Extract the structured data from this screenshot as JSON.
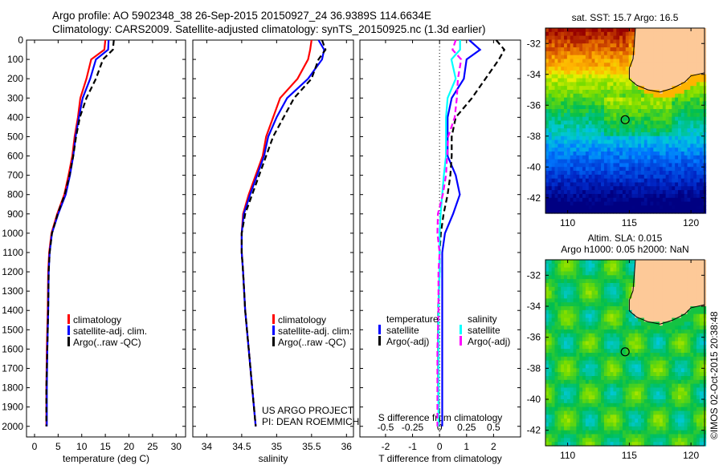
{
  "title": {
    "line1": "Argo profile: AO 5902348_38 26-Sep-2015 20150927_24 36.9389S 114.6634E",
    "line2": "Climatology: CARS2009. Satellite-adjusted climatology: synTS_20150925.nc (1.3d earlier)"
  },
  "credits": {
    "project": "US ARGO PROJECT",
    "pi": "PI: DEAN ROEMMICH"
  },
  "copyright": "©IMOS 02-Oct-2015 20:38:48",
  "chart_data": [
    {
      "id": "temperature",
      "type": "line",
      "xlabel": "temperature (deg C)",
      "ylabel": "",
      "xlim": [
        -1.7,
        32
      ],
      "ylim": [
        2055,
        0
      ],
      "xticks": [
        0,
        5,
        10,
        15,
        20,
        25,
        30
      ],
      "xtick_labels": [
        "0",
        "5",
        "10",
        "15",
        "20",
        "25",
        "30"
      ],
      "yticks": [
        0,
        100,
        200,
        300,
        400,
        500,
        600,
        700,
        800,
        900,
        1000,
        1100,
        1200,
        1300,
        1400,
        1500,
        1600,
        1700,
        1800,
        1900,
        2000
      ],
      "ytick_labels": [
        "0",
        "100",
        "200",
        "300",
        "400",
        "500",
        "600",
        "700",
        "800",
        "900",
        "1000",
        "1100",
        "1200",
        "1300",
        "1400",
        "1500",
        "1600",
        "1700",
        "1800",
        "1900",
        "2000"
      ],
      "depth": [
        0,
        50,
        100,
        200,
        300,
        400,
        500,
        600,
        700,
        800,
        900,
        1000,
        1100,
        1200,
        1400,
        1600,
        1800,
        2000
      ],
      "series": [
        {
          "name": "climatology",
          "color": "#ff0000",
          "dash": false,
          "values": [
            15,
            14.8,
            12,
            11,
            9.7,
            9.2,
            8.5,
            8,
            7.2,
            6.3,
            4.8,
            3.6,
            3.1,
            2.9,
            2.8,
            2.6,
            2.5,
            2.5
          ]
        },
        {
          "name": "satellite-adj. clim.",
          "color": "#0000ff",
          "dash": false,
          "values": [
            15.7,
            15.6,
            13,
            11.8,
            10.2,
            9.4,
            8.7,
            8.2,
            7.5,
            6.6,
            5,
            3.7,
            3.2,
            3,
            2.9,
            2.7,
            2.6,
            2.6
          ]
        },
        {
          "name": "Argo(..raw -QC)",
          "color": "#000000",
          "dash": true,
          "values": [
            16.8,
            16.6,
            14.5,
            13,
            11,
            9.6,
            8.8,
            8.2,
            7.4,
            6.4,
            4.9,
            3.7,
            3.2,
            3,
            2.9,
            2.7,
            2.5,
            2.5
          ]
        }
      ]
    },
    {
      "id": "salinity",
      "type": "line",
      "xlabel": "salinity",
      "ylabel": "",
      "xlim": [
        33.8,
        36.1
      ],
      "ylim": [
        2055,
        0
      ],
      "xticks": [
        34,
        34.5,
        35,
        35.5,
        36
      ],
      "xtick_labels": [
        "34",
        "34.5",
        "35",
        "35.5",
        "36"
      ],
      "depth": [
        0,
        50,
        100,
        200,
        300,
        400,
        500,
        600,
        700,
        800,
        900,
        1000,
        1100,
        1200,
        1400,
        1600,
        1800,
        2000
      ],
      "series": [
        {
          "name": "climatology",
          "color": "#ff0000",
          "dash": false,
          "values": [
            35.5,
            35.48,
            35.45,
            35.3,
            35.05,
            34.95,
            34.85,
            34.8,
            34.7,
            34.6,
            34.52,
            34.5,
            34.5,
            34.52,
            34.55,
            34.6,
            34.65,
            34.7
          ]
        },
        {
          "name": "satellite-adj. clim.",
          "color": "#0000ff",
          "dash": false,
          "values": [
            35.6,
            35.68,
            35.65,
            35.45,
            35.15,
            35.0,
            34.88,
            34.82,
            34.72,
            34.62,
            34.53,
            34.5,
            34.5,
            34.52,
            34.55,
            34.6,
            34.65,
            34.7
          ]
        },
        {
          "name": "Argo(..raw -QC)",
          "color": "#000000",
          "dash": true,
          "values": [
            35.65,
            35.7,
            35.6,
            35.5,
            35.25,
            35.1,
            34.95,
            34.85,
            34.75,
            34.65,
            34.55,
            34.5,
            34.5,
            34.52,
            34.55,
            34.6,
            34.65,
            34.7
          ]
        }
      ]
    },
    {
      "id": "difference",
      "type": "line",
      "xlabel": "T difference from climatology",
      "x2label": "S difference from climatology",
      "xlim": [
        -2.95,
        3.0
      ],
      "x2lim": [
        -0.7375,
        0.75
      ],
      "ylim": [
        2055,
        0
      ],
      "xticks": [
        -2,
        -1,
        0,
        1,
        2
      ],
      "xtick_labels": [
        "-2",
        "-1",
        "0",
        "1",
        "2"
      ],
      "x2ticks": [
        -0.5,
        -0.25,
        0,
        0.25,
        0.5
      ],
      "x2tick_labels": [
        "-0.5",
        "-0.25",
        "0",
        "0.25",
        "0.5"
      ],
      "legend_headers": [
        "temperature",
        "salinity"
      ],
      "depth": [
        0,
        50,
        100,
        200,
        300,
        400,
        500,
        600,
        700,
        800,
        900,
        1000,
        1100,
        1200,
        1400,
        1600,
        1800,
        2000
      ],
      "series": [
        {
          "name": "satellite",
          "group": "temperature",
          "axis": "T",
          "color": "#0000ff",
          "dash": false,
          "values": [
            1.1,
            1.5,
            1.0,
            0.9,
            0.45,
            0.3,
            0.3,
            0.3,
            0.6,
            0.75,
            0.5,
            0.2,
            0.1,
            0.1,
            0.1,
            0.1,
            0.1,
            0.1
          ]
        },
        {
          "name": "Argo(-adj)",
          "group": "temperature",
          "axis": "T",
          "color": "#000000",
          "dash": true,
          "values": [
            2.1,
            2.4,
            2.2,
            1.7,
            1.2,
            0.6,
            0.45,
            0.45,
            0.4,
            0.3,
            0.15,
            0.05,
            0,
            0,
            -0.05,
            -0.05,
            -0.05,
            0
          ]
        },
        {
          "name": "satellite",
          "group": "salinity",
          "axis": "S",
          "color": "#00ffff",
          "dash": false,
          "values": [
            0.19,
            0.19,
            0.11,
            0.15,
            0.075,
            0.06,
            0.06,
            0.06,
            0.04,
            0.025,
            0.01,
            0,
            0,
            0,
            -0.01,
            -0.01,
            -0.01,
            -0.01
          ]
        },
        {
          "name": "Argo(-adj)",
          "group": "salinity",
          "axis": "S",
          "color": "#ff00ff",
          "dash": true,
          "values": [
            0.15,
            0.12,
            0.2,
            0.17,
            0.16,
            0.14,
            0.08,
            0.07,
            0.06,
            0.03,
            -0.015,
            -0.02,
            0,
            -0.01,
            -0.01,
            -0.02,
            -0.02,
            -0.02
          ]
        }
      ]
    },
    {
      "id": "sst-map",
      "type": "heatmap",
      "title": "sat. SST: 15.7 Argo: 16.5",
      "xlim": [
        108.2,
        121.1
      ],
      "ylim": [
        -43,
        -31
      ],
      "xticks": [
        110,
        115,
        120
      ],
      "xtick_labels": [
        "110",
        "115",
        "120"
      ],
      "yticks": [
        -32,
        -34,
        -36,
        -38,
        -40,
        -42
      ],
      "ytick_labels": [
        "-32",
        "-34",
        "-36",
        "-38",
        "-40",
        "-42"
      ],
      "marker": {
        "lon": 114.6634,
        "lat": -36.9389
      },
      "land_color": "#fdc998"
    },
    {
      "id": "sla-map",
      "type": "heatmap",
      "title": "Altim. SLA: 0.015",
      "subtitle": "Argo h1000: 0.05 h2000: NaN",
      "xlim": [
        108.2,
        121.1
      ],
      "ylim": [
        -43,
        -31
      ],
      "xticks": [
        110,
        115,
        120
      ],
      "xtick_labels": [
        "110",
        "115",
        "120"
      ],
      "yticks": [
        -32,
        -34,
        -36,
        -38,
        -40,
        -42
      ],
      "ytick_labels": [
        "-32",
        "-34",
        "-36",
        "-38",
        "-40",
        "-42"
      ],
      "marker": {
        "lon": 114.6634,
        "lat": -36.9389
      },
      "land_color": "#fdc998"
    }
  ]
}
